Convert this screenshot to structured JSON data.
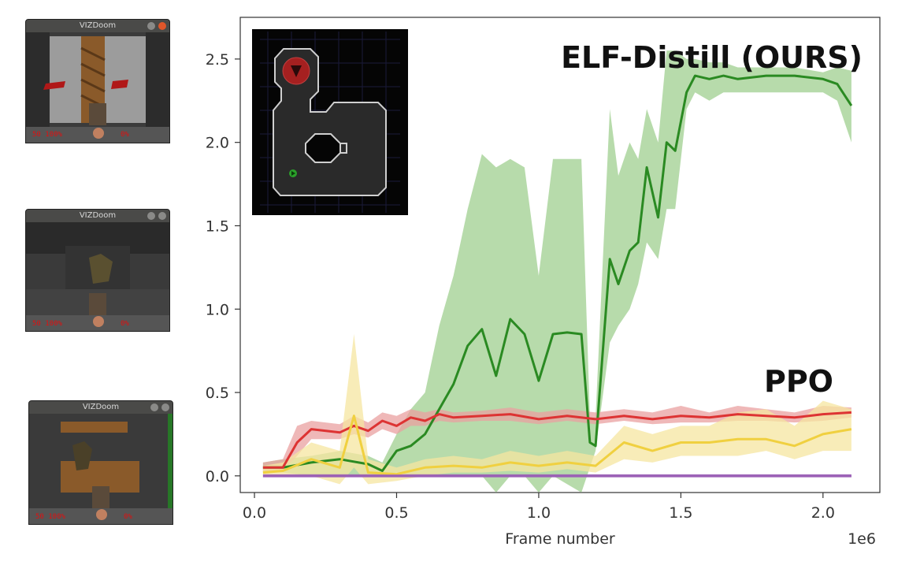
{
  "thumbnails": [
    {
      "title": "VIZDoom",
      "hud": "50 100%",
      "hud_right": "0%"
    },
    {
      "title": "VIZDoom",
      "hud": "50 100%",
      "hud_right": "0%"
    },
    {
      "title": "VIZDoom",
      "hud": "50 100%",
      "hud_right": "0%"
    }
  ],
  "colors": {
    "green": "#2a8a22",
    "green_band": "#9fcf8f",
    "red": "#dd3333",
    "red_band": "#e9a0a0",
    "yellow": "#f0d040",
    "yellow_band": "#f5e6a0",
    "purple": "#9a5fb5"
  },
  "chart_data": {
    "type": "line",
    "title": "",
    "xlabel": "Frame number",
    "ylabel": "",
    "x_offset_label": "1e6",
    "xlim": [
      -0.05,
      2.2
    ],
    "ylim": [
      -0.1,
      2.75
    ],
    "xticks": [
      0.0,
      0.5,
      1.0,
      1.5,
      2.0
    ],
    "xtick_labels": [
      "0.0",
      "0.5",
      "1.0",
      "1.5",
      "2.0"
    ],
    "yticks": [
      0.0,
      0.5,
      1.0,
      1.5,
      2.0,
      2.5
    ],
    "ytick_labels": [
      "0.0",
      "0.5",
      "1.0",
      "1.5",
      "2.0",
      "2.5"
    ],
    "grid": false,
    "annotations": [
      "ELF-Distill (OURS)",
      "PPO"
    ],
    "series": [
      {
        "color_key": "green",
        "x": [
          0.03,
          0.1,
          0.2,
          0.3,
          0.4,
          0.45,
          0.5,
          0.55,
          0.6,
          0.65,
          0.7,
          0.75,
          0.8,
          0.85,
          0.9,
          0.95,
          1.0,
          1.05,
          1.1,
          1.15,
          1.18,
          1.2,
          1.25,
          1.28,
          1.32,
          1.35,
          1.38,
          1.42,
          1.45,
          1.48,
          1.52,
          1.55,
          1.6,
          1.65,
          1.7,
          1.8,
          1.9,
          2.0,
          2.05,
          2.1
        ],
        "y": [
          0.05,
          0.05,
          0.08,
          0.1,
          0.07,
          0.03,
          0.15,
          0.18,
          0.25,
          0.4,
          0.55,
          0.78,
          0.88,
          0.6,
          0.94,
          0.85,
          0.57,
          0.85,
          0.86,
          0.85,
          0.2,
          0.18,
          1.3,
          1.15,
          1.35,
          1.4,
          1.85,
          1.55,
          2.0,
          1.95,
          2.3,
          2.4,
          2.38,
          2.4,
          2.38,
          2.4,
          2.4,
          2.38,
          2.35,
          2.22
        ],
        "lower": [
          0.02,
          0.02,
          0.0,
          0.0,
          0.0,
          0.0,
          0.02,
          0.0,
          0.0,
          0.0,
          0.0,
          0.0,
          0.0,
          -0.1,
          0.0,
          0.0,
          -0.1,
          0.0,
          -0.05,
          -0.1,
          0.05,
          0.15,
          0.8,
          0.9,
          1.0,
          1.15,
          1.4,
          1.3,
          1.6,
          1.6,
          2.2,
          2.3,
          2.25,
          2.3,
          2.3,
          2.3,
          2.3,
          2.3,
          2.25,
          2.0
        ],
        "upper": [
          0.08,
          0.1,
          0.12,
          0.15,
          0.12,
          0.08,
          0.25,
          0.4,
          0.5,
          0.9,
          1.2,
          1.6,
          1.93,
          1.85,
          1.9,
          1.85,
          1.2,
          1.9,
          1.9,
          1.9,
          0.35,
          0.35,
          2.2,
          1.8,
          2.0,
          1.9,
          2.2,
          2.0,
          2.55,
          2.55,
          2.5,
          2.5,
          2.48,
          2.48,
          2.45,
          2.45,
          2.45,
          2.42,
          2.45,
          2.43
        ]
      },
      {
        "color_key": "red",
        "x": [
          0.03,
          0.1,
          0.15,
          0.2,
          0.3,
          0.35,
          0.4,
          0.45,
          0.5,
          0.55,
          0.6,
          0.65,
          0.7,
          0.8,
          0.9,
          1.0,
          1.1,
          1.2,
          1.3,
          1.4,
          1.5,
          1.6,
          1.7,
          1.8,
          1.9,
          2.0,
          2.1
        ],
        "y": [
          0.05,
          0.05,
          0.2,
          0.28,
          0.26,
          0.3,
          0.27,
          0.33,
          0.3,
          0.35,
          0.33,
          0.37,
          0.35,
          0.36,
          0.37,
          0.34,
          0.36,
          0.34,
          0.36,
          0.34,
          0.36,
          0.35,
          0.37,
          0.36,
          0.35,
          0.37,
          0.38
        ],
        "lower": [
          0.03,
          0.03,
          0.12,
          0.22,
          0.22,
          0.25,
          0.23,
          0.28,
          0.25,
          0.3,
          0.3,
          0.33,
          0.32,
          0.33,
          0.33,
          0.31,
          0.33,
          0.31,
          0.33,
          0.31,
          0.32,
          0.32,
          0.33,
          0.33,
          0.32,
          0.33,
          0.35
        ],
        "upper": [
          0.08,
          0.1,
          0.3,
          0.33,
          0.31,
          0.36,
          0.32,
          0.38,
          0.36,
          0.4,
          0.38,
          0.4,
          0.38,
          0.39,
          0.41,
          0.38,
          0.4,
          0.38,
          0.4,
          0.38,
          0.42,
          0.38,
          0.42,
          0.4,
          0.38,
          0.42,
          0.41
        ]
      },
      {
        "color_key": "yellow",
        "x": [
          0.03,
          0.1,
          0.2,
          0.3,
          0.35,
          0.4,
          0.5,
          0.6,
          0.7,
          0.8,
          0.9,
          1.0,
          1.1,
          1.2,
          1.3,
          1.4,
          1.5,
          1.6,
          1.7,
          1.8,
          1.9,
          2.0,
          2.1
        ],
        "y": [
          0.02,
          0.03,
          0.1,
          0.05,
          0.36,
          0.02,
          0.01,
          0.05,
          0.06,
          0.05,
          0.08,
          0.06,
          0.08,
          0.06,
          0.2,
          0.15,
          0.2,
          0.2,
          0.22,
          0.22,
          0.18,
          0.25,
          0.28
        ],
        "lower": [
          0.0,
          0.0,
          0.0,
          -0.05,
          0.05,
          -0.05,
          -0.03,
          0.0,
          0.02,
          0.02,
          0.03,
          0.02,
          0.04,
          0.02,
          0.1,
          0.08,
          0.12,
          0.12,
          0.12,
          0.15,
          0.1,
          0.15,
          0.15
        ],
        "upper": [
          0.06,
          0.08,
          0.2,
          0.15,
          0.85,
          0.1,
          0.05,
          0.1,
          0.12,
          0.1,
          0.15,
          0.12,
          0.15,
          0.12,
          0.3,
          0.25,
          0.3,
          0.3,
          0.38,
          0.4,
          0.3,
          0.45,
          0.4
        ]
      },
      {
        "color_key": "purple",
        "x": [
          0.03,
          2.1
        ],
        "y": [
          0.0,
          0.0
        ],
        "lower": [
          -0.01,
          -0.01
        ],
        "upper": [
          0.01,
          0.01
        ]
      }
    ]
  },
  "minimap": {
    "description_hidden": true
  }
}
